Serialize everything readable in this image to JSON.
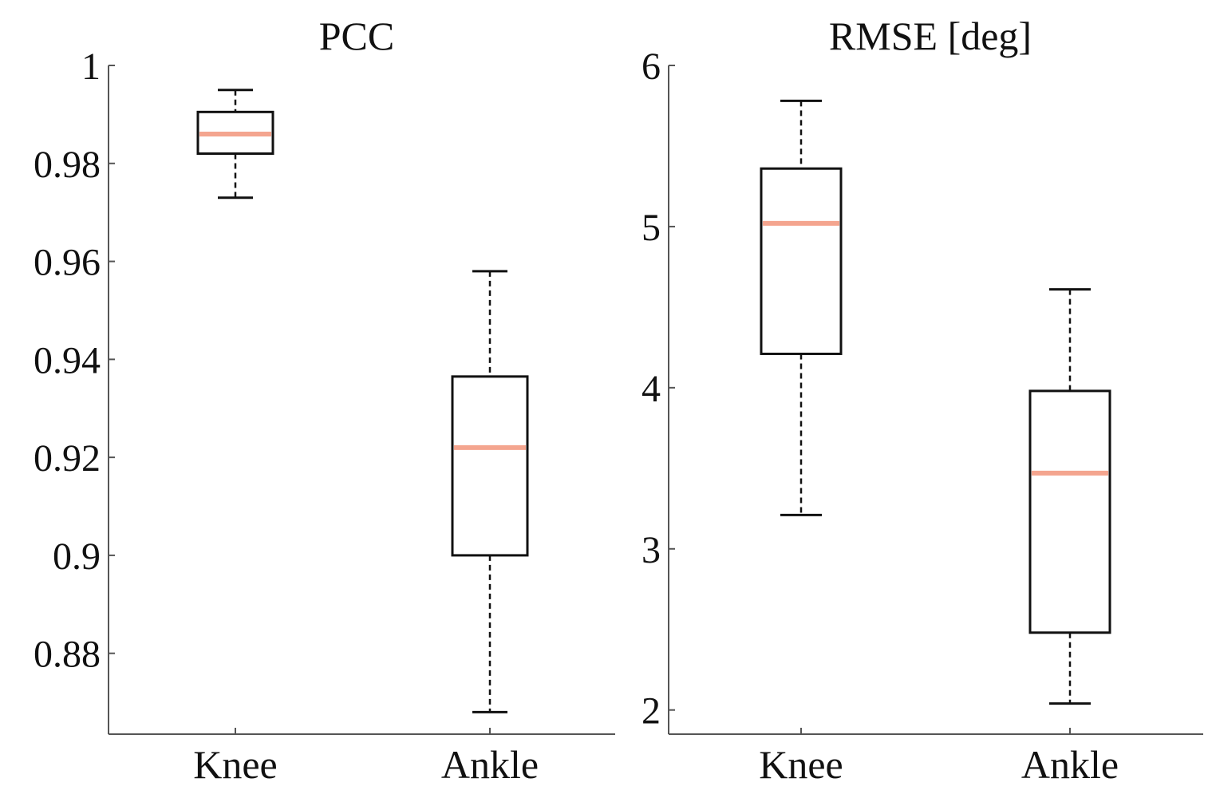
{
  "colors": {
    "axis": "#555555",
    "box": "#111111",
    "median": "#f4a58f",
    "background": "#ffffff"
  },
  "chart_data": [
    {
      "type": "boxplot",
      "title": "PCC",
      "xlabel": "",
      "ylabel": "",
      "categories": [
        "Knee",
        "Ankle"
      ],
      "ylim": [
        0.8635,
        1.0
      ],
      "yticks": [
        0.88,
        0.9,
        0.92,
        0.94,
        0.96,
        0.98,
        1.0
      ],
      "ytick_labels": [
        "0.88",
        "0.9",
        "0.92",
        "0.94",
        "0.96",
        "0.98",
        "1"
      ],
      "boxes": [
        {
          "name": "Knee",
          "whisker_low": 0.973,
          "q1": 0.982,
          "median": 0.986,
          "q3": 0.9905,
          "whisker_high": 0.995
        },
        {
          "name": "Ankle",
          "whisker_low": 0.868,
          "q1": 0.9,
          "median": 0.922,
          "q3": 0.9365,
          "whisker_high": 0.958
        }
      ]
    },
    {
      "type": "boxplot",
      "title": "RMSE [deg]",
      "xlabel": "",
      "ylabel": "",
      "categories": [
        "Knee",
        "Ankle"
      ],
      "ylim": [
        1.85,
        6.0
      ],
      "yticks": [
        2,
        3,
        4,
        5,
        6
      ],
      "ytick_labels": [
        "2",
        "3",
        "4",
        "5",
        "6"
      ],
      "boxes": [
        {
          "name": "Knee",
          "whisker_low": 3.21,
          "q1": 4.21,
          "median": 5.02,
          "q3": 5.36,
          "whisker_high": 5.78
        },
        {
          "name": "Ankle",
          "whisker_low": 2.04,
          "q1": 2.48,
          "median": 3.47,
          "q3": 3.98,
          "whisker_high": 4.61
        }
      ]
    }
  ]
}
